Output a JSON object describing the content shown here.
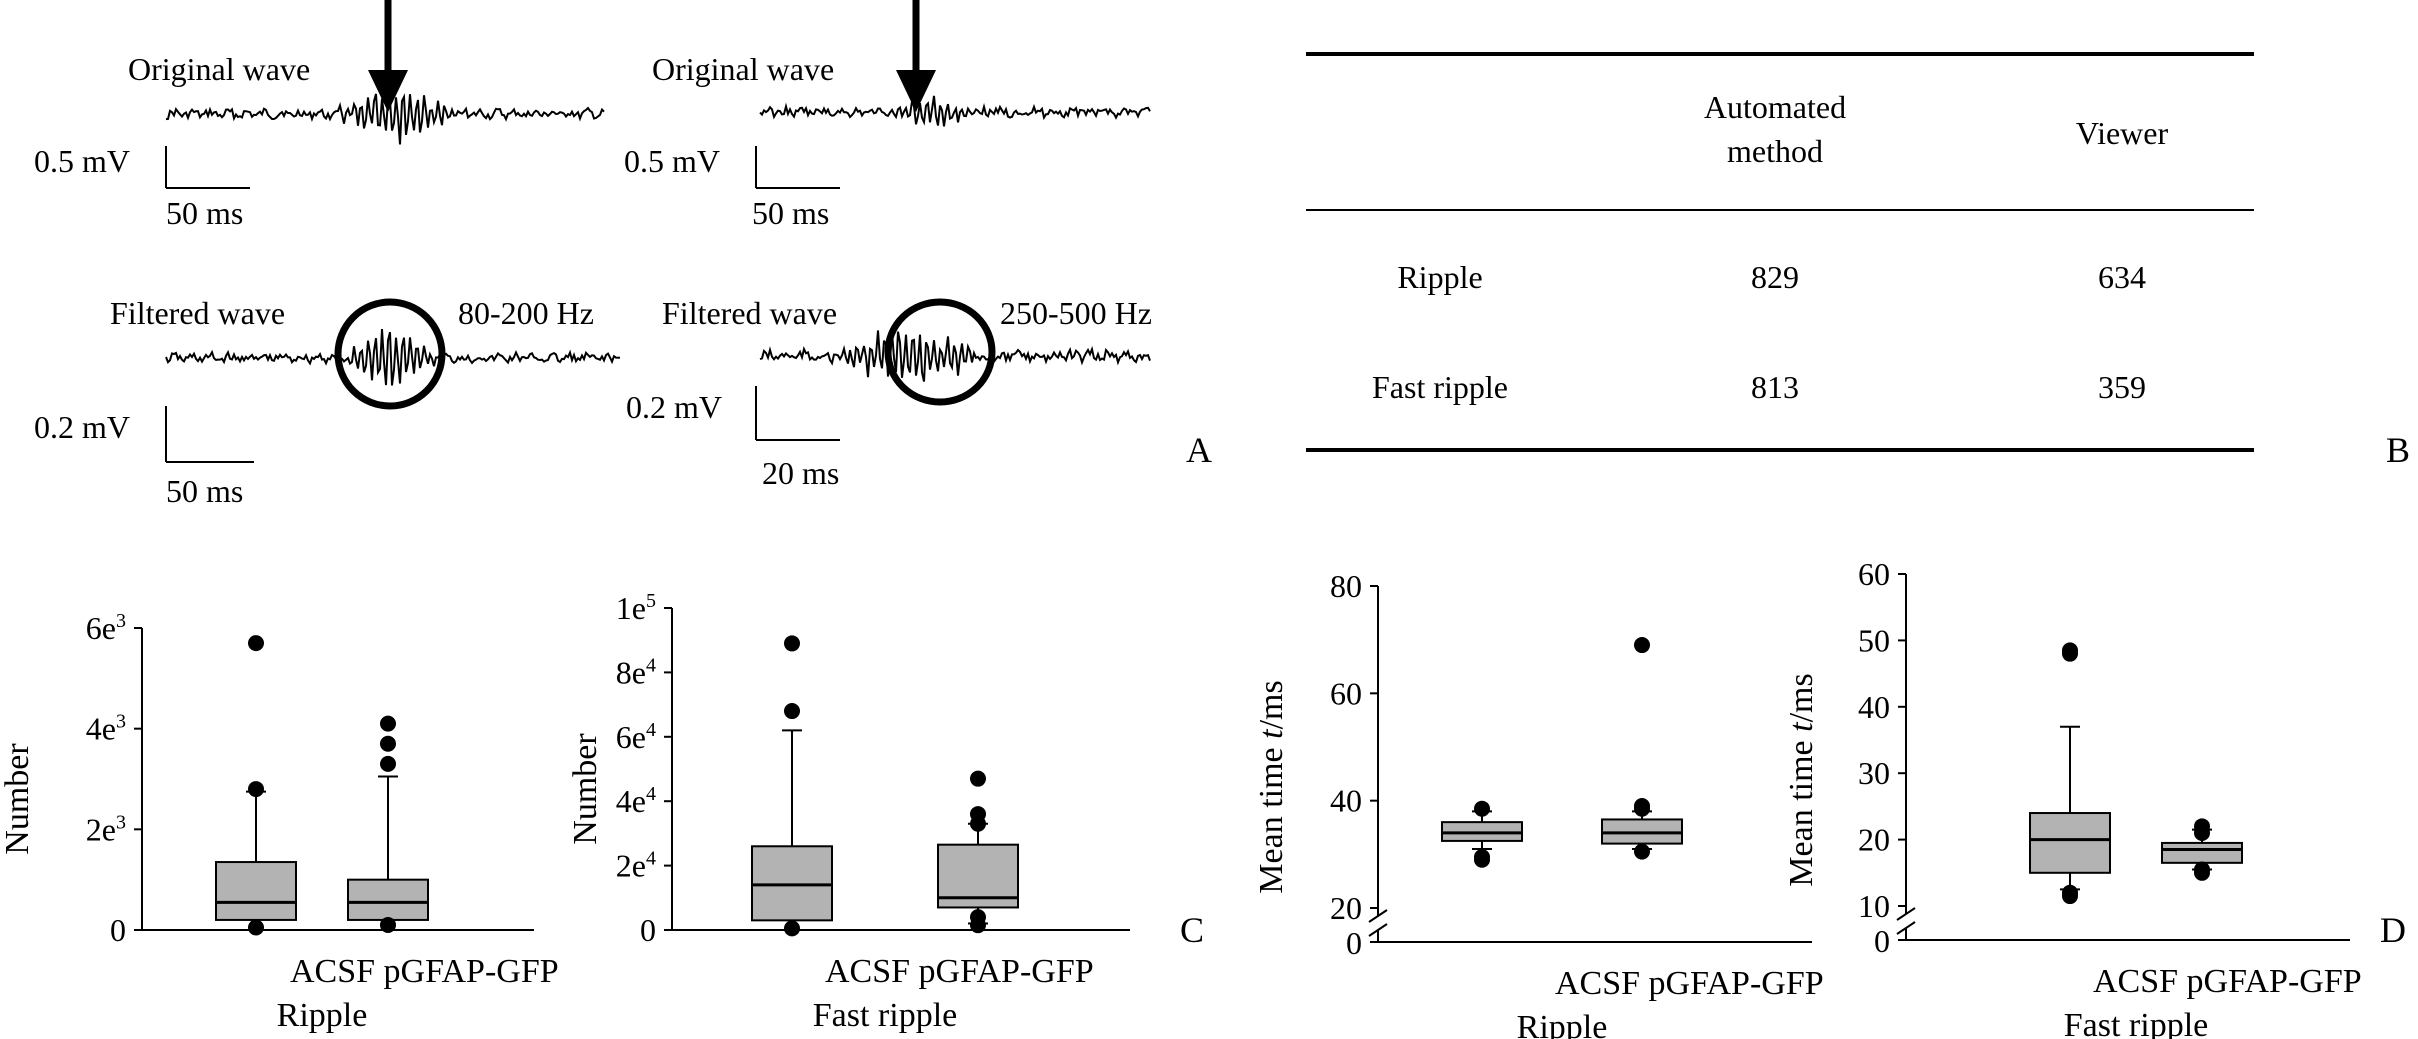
{
  "panel_a": {
    "label": "A",
    "left": {
      "original_label": "Original wave",
      "original_scale_v": "0.5 mV",
      "original_scale_t": "50 ms",
      "filtered_label": "Filtered wave",
      "band": "80-200 Hz",
      "filtered_scale_v": "0.2 mV",
      "filtered_scale_t": "50 ms"
    },
    "right": {
      "original_label": "Original wave",
      "original_scale_v": "0.5 mV",
      "original_scale_t": "50 ms",
      "filtered_label": "Filtered wave",
      "band": "250-500 Hz",
      "filtered_scale_v": "0.2 mV",
      "filtered_scale_t": "20 ms"
    }
  },
  "panel_b": {
    "label": "B",
    "headers": [
      "",
      "Automated method",
      "Viewer"
    ],
    "rows": [
      {
        "name": "Ripple",
        "automated": "829",
        "viewer": "634"
      },
      {
        "name": "Fast ripple",
        "automated": "813",
        "viewer": "359"
      }
    ]
  },
  "panel_c_label": "C",
  "panel_d_label": "D",
  "chart_data": [
    {
      "type": "box",
      "ylabel": "Number",
      "xlabel": "Ripple",
      "categories": [
        "ACSF",
        "pGFAP-GFP"
      ],
      "category_line": "ACSF pGFAP-GFP",
      "ylim": [
        0,
        6000
      ],
      "yticks": [
        {
          "v": 0,
          "label": "0"
        },
        {
          "v": 2000,
          "label": "2e3"
        },
        {
          "v": 4000,
          "label": "4e3"
        },
        {
          "v": 6000,
          "label": "6e3"
        }
      ],
      "boxes": [
        {
          "name": "ACSF",
          "min": 0,
          "q1": 200,
          "median": 550,
          "q3": 1350,
          "max": 2750,
          "outliers": [
            5700,
            2800,
            50
          ]
        },
        {
          "name": "pGFAP-GFP",
          "min": 0,
          "q1": 200,
          "median": 550,
          "q3": 1000,
          "max": 3050,
          "outliers": [
            4100,
            3700,
            3300,
            100
          ]
        }
      ]
    },
    {
      "type": "box",
      "ylabel": "Number",
      "xlabel": "Fast ripple",
      "categories": [
        "ACSF",
        "pGFAP-GFP"
      ],
      "category_line": "ACSF pGFAP-GFP",
      "ylim": [
        0,
        100000
      ],
      "yticks": [
        {
          "v": 0,
          "label": "0"
        },
        {
          "v": 20000,
          "label": "2e4"
        },
        {
          "v": 40000,
          "label": "4e4"
        },
        {
          "v": 60000,
          "label": "6e4"
        },
        {
          "v": 80000,
          "label": "8e4"
        },
        {
          "v": 100000,
          "label": "1e5"
        }
      ],
      "boxes": [
        {
          "name": "ACSF",
          "min": 0,
          "q1": 3000,
          "median": 14000,
          "q3": 26000,
          "max": 62000,
          "outliers": [
            89000,
            68000,
            500
          ]
        },
        {
          "name": "pGFAP-GFP",
          "min": 2000,
          "q1": 7000,
          "median": 10000,
          "q3": 26500,
          "max": 33000,
          "outliers": [
            47000,
            36000,
            33000,
            4000,
            1500
          ]
        }
      ]
    },
    {
      "type": "box",
      "ylabel": "Mean time t/ms",
      "xlabel": "Ripple",
      "categories": [
        "ACSF",
        "pGFAP-GFP"
      ],
      "category_line": "ACSF pGFAP-GFP",
      "ylim": [
        20,
        80
      ],
      "axis_break": true,
      "yticks": [
        {
          "v": 20,
          "label": "20"
        },
        {
          "v": 40,
          "label": "40"
        },
        {
          "v": 60,
          "label": "60"
        },
        {
          "v": 80,
          "label": "80"
        }
      ],
      "baseline_label": "0",
      "boxes": [
        {
          "name": "ACSF",
          "min": 31,
          "q1": 32.5,
          "median": 34,
          "q3": 36,
          "max": 38,
          "outliers": [
            38.5,
            29.5,
            29
          ]
        },
        {
          "name": "pGFAP-GFP",
          "min": 31,
          "q1": 32,
          "median": 34,
          "q3": 36.5,
          "max": 38,
          "outliers": [
            69,
            39,
            38.5,
            30.5
          ]
        }
      ]
    },
    {
      "type": "box",
      "ylabel": "Mean time t/ms",
      "xlabel": "Fast ripple",
      "categories": [
        "ACSF",
        "pGFAP-GFP"
      ],
      "category_line": "ACSF pGFAP-GFP",
      "ylim": [
        10,
        60
      ],
      "axis_break": true,
      "yticks": [
        {
          "v": 10,
          "label": "10"
        },
        {
          "v": 20,
          "label": "20"
        },
        {
          "v": 30,
          "label": "30"
        },
        {
          "v": 40,
          "label": "40"
        },
        {
          "v": 50,
          "label": "50"
        },
        {
          "v": 60,
          "label": "60"
        }
      ],
      "baseline_label": "0",
      "boxes": [
        {
          "name": "ACSF",
          "min": 12.5,
          "q1": 15,
          "median": 20,
          "q3": 24,
          "max": 37,
          "outliers": [
            48.5,
            48,
            12,
            11.5
          ]
        },
        {
          "name": "pGFAP-GFP",
          "min": 15.5,
          "q1": 16.5,
          "median": 18.5,
          "q3": 19.5,
          "max": 21.5,
          "outliers": [
            22,
            21,
            15.5,
            15
          ]
        }
      ]
    }
  ]
}
